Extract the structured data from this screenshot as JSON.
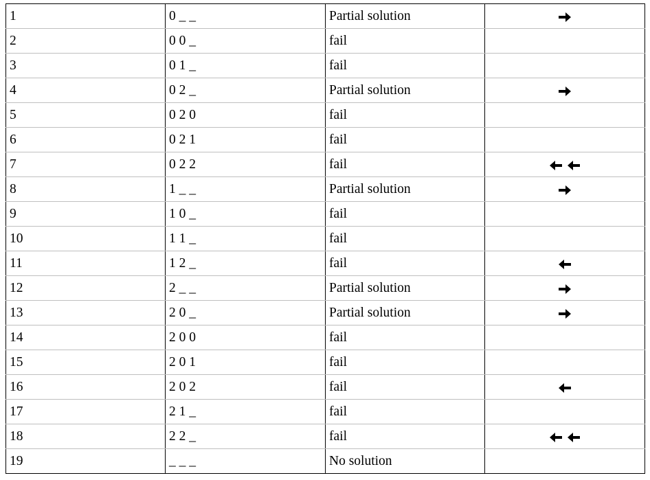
{
  "rows": [
    {
      "step": "1",
      "assignment": "0 _ _",
      "result": "Partial solution",
      "arrows": [
        "arrow-right-icon"
      ]
    },
    {
      "step": "2",
      "assignment": "0 0 _",
      "result": "fail",
      "arrows": []
    },
    {
      "step": "3",
      "assignment": "0 1 _",
      "result": "fail",
      "arrows": []
    },
    {
      "step": "4",
      "assignment": "0 2 _",
      "result": "Partial solution",
      "arrows": [
        "arrow-right-icon"
      ]
    },
    {
      "step": "5",
      "assignment": "0 2 0",
      "result": "fail",
      "arrows": []
    },
    {
      "step": "6",
      "assignment": "0 2 1",
      "result": "fail",
      "arrows": []
    },
    {
      "step": "7",
      "assignment": "0 2 2",
      "result": "fail",
      "arrows": [
        "arrow-left-icon",
        "arrow-left-icon"
      ]
    },
    {
      "step": "8",
      "assignment": "1 _ _",
      "result": "Partial solution",
      "arrows": [
        "arrow-right-icon"
      ]
    },
    {
      "step": "9",
      "assignment": "1 0 _",
      "result": "fail",
      "arrows": []
    },
    {
      "step": "10",
      "assignment": "1 1 _",
      "result": "fail",
      "arrows": []
    },
    {
      "step": "11",
      "assignment": "1 2 _",
      "result": "fail",
      "arrows": [
        "arrow-left-icon"
      ]
    },
    {
      "step": "12",
      "assignment": "2 _ _",
      "result": "Partial solution",
      "arrows": [
        "arrow-right-icon"
      ]
    },
    {
      "step": "13",
      "assignment": "2 0 _",
      "result": "Partial solution",
      "arrows": [
        "arrow-right-icon"
      ]
    },
    {
      "step": "14",
      "assignment": "2 0 0",
      "result": "fail",
      "arrows": []
    },
    {
      "step": "15",
      "assignment": "2 0 1",
      "result": "fail",
      "arrows": []
    },
    {
      "step": "16",
      "assignment": "2 0 2",
      "result": "fail",
      "arrows": [
        "arrow-left-icon"
      ]
    },
    {
      "step": "17",
      "assignment": "2 1 _",
      "result": "fail",
      "arrows": []
    },
    {
      "step": "18",
      "assignment": "2 2 _",
      "result": "fail",
      "arrows": [
        "arrow-left-icon",
        "arrow-left-icon"
      ]
    },
    {
      "step": "19",
      "assignment": "_ _ _",
      "result": "No solution",
      "arrows": []
    }
  ]
}
